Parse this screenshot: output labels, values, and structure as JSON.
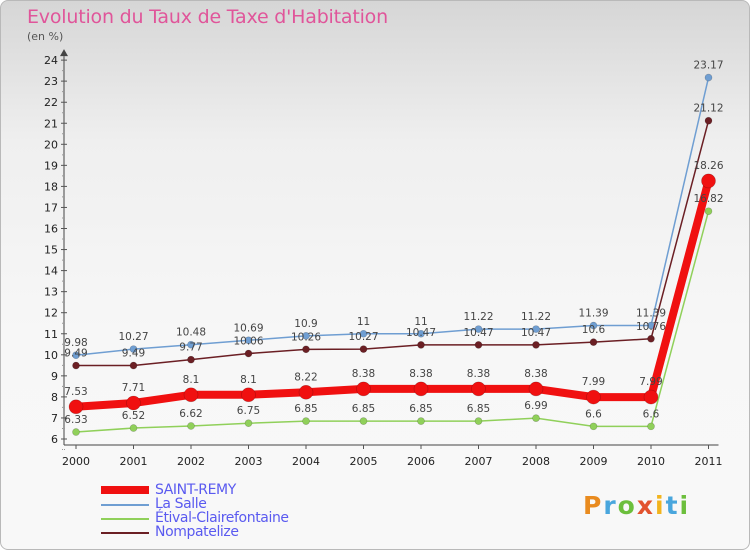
{
  "title": "Evolution du Taux de Taxe d'Habitation",
  "subtitle": "(en %)",
  "logo": "Proxiti",
  "chart_data": {
    "type": "line",
    "title": "Evolution du Taux de Taxe d'Habitation",
    "ylabel": "(en %)",
    "x": [
      "2000",
      "2001",
      "2002",
      "2003",
      "2004",
      "2005",
      "2006",
      "2007",
      "2008",
      "2009",
      "2010",
      "2011"
    ],
    "ylim": [
      6,
      24
    ],
    "yticks": [
      6,
      7,
      8,
      9,
      10,
      11,
      12,
      13,
      14,
      15,
      16,
      17,
      18,
      19,
      20,
      21,
      22,
      23,
      24
    ],
    "grid": false,
    "legend_position": "bottom-left",
    "series": [
      {
        "name": "La Salle",
        "color": "#6f9ed2",
        "values": [
          9.98,
          10.27,
          10.48,
          10.69,
          10.9,
          11,
          11,
          11.22,
          11.22,
          11.39,
          11.39,
          23.17
        ],
        "labels": [
          "9.98",
          "10.27",
          "10.48",
          "10.69",
          "10.9",
          "11",
          "11",
          "11.22",
          "11.22",
          "11.39",
          "11.39",
          "23.17"
        ]
      },
      {
        "name": "Nompatelize",
        "color": "#6b1f24",
        "values": [
          9.49,
          9.49,
          9.77,
          10.06,
          10.26,
          10.27,
          10.47,
          10.47,
          10.47,
          10.6,
          10.76,
          21.12
        ],
        "labels": [
          "9.49",
          "9.49",
          "9.77",
          "10.06",
          "10.26",
          "10.27",
          "10.47",
          "10.47",
          "10.47",
          "10.6",
          "10.76",
          "21.12"
        ]
      },
      {
        "name": "Étival-Clairefontaine",
        "color": "#90d05a",
        "values": [
          6.33,
          6.52,
          6.62,
          6.75,
          6.85,
          6.85,
          6.85,
          6.85,
          6.99,
          6.6,
          6.6,
          16.82
        ],
        "labels": [
          "6.33",
          "6.52",
          "6.62",
          "6.75",
          "6.85",
          "6.85",
          "6.85",
          "6.85",
          "6.99",
          "6.6",
          "6.6",
          "16.82"
        ]
      },
      {
        "name": "SAINT-REMY",
        "color": "#f01010",
        "values": [
          7.53,
          7.71,
          8.1,
          8.1,
          8.22,
          8.38,
          8.38,
          8.38,
          8.38,
          7.99,
          7.99,
          18.26
        ],
        "labels": [
          "7.53",
          "7.71",
          "8.1",
          "8.1",
          "8.22",
          "8.38",
          "8.38",
          "8.38",
          "8.38",
          "7.99",
          "7.99",
          "18.26"
        ]
      }
    ]
  }
}
